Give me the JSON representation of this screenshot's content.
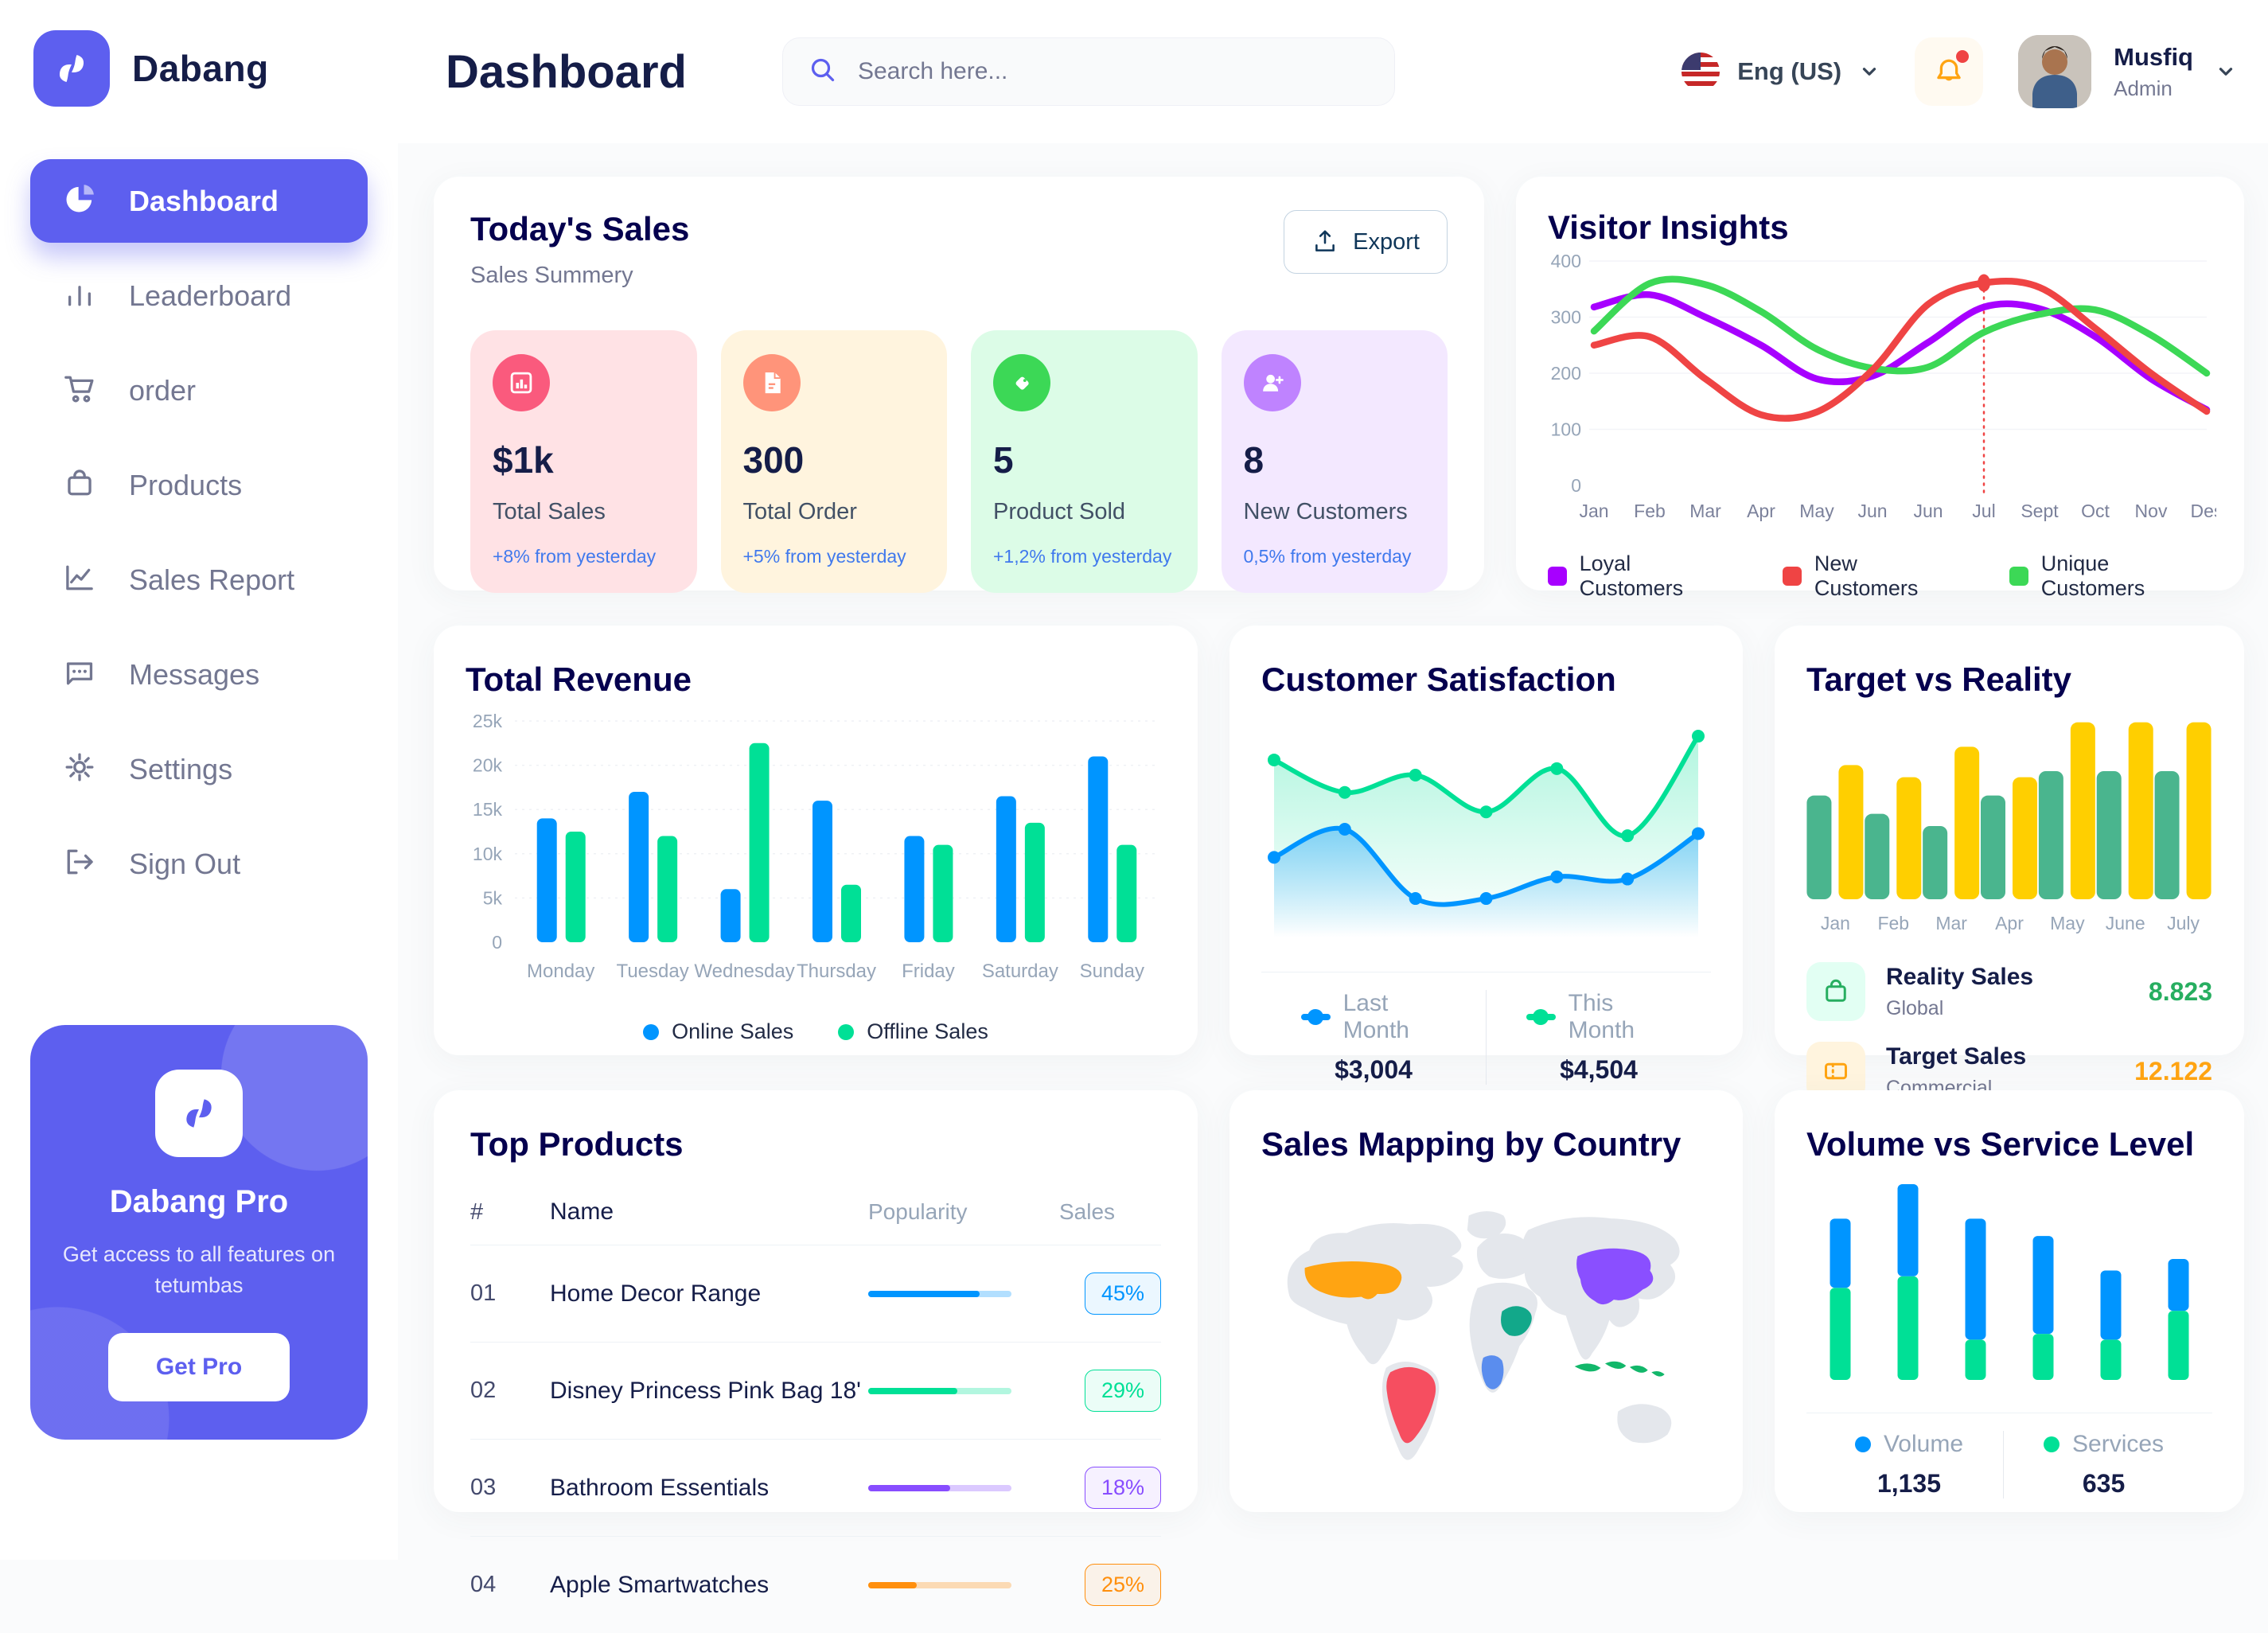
{
  "app": {
    "name": "Dabang"
  },
  "header": {
    "title": "Dashboard",
    "search_placeholder": "Search here...",
    "language": "Eng (US)",
    "user": {
      "name": "Musfiq",
      "role": "Admin"
    }
  },
  "sidebar": {
    "items": [
      {
        "label": "Dashboard",
        "active": true
      },
      {
        "label": "Leaderboard"
      },
      {
        "label": "order"
      },
      {
        "label": "Products"
      },
      {
        "label": "Sales Report"
      },
      {
        "label": "Messages"
      },
      {
        "label": "Settings"
      },
      {
        "label": "Sign Out"
      }
    ],
    "pro": {
      "title": "Dabang Pro",
      "desc": "Get access to all features on tetumbas",
      "cta": "Get Pro"
    }
  },
  "todays_sales": {
    "title": "Today's Sales",
    "subtitle": "Sales Summery",
    "export_label": "Export",
    "cards": [
      {
        "value": "$1k",
        "label": "Total Sales",
        "delta": "+8% from yesterday",
        "bg": "#FFE2E5",
        "icon_bg": "#FA5A7D",
        "icon": "chart-frame-icon"
      },
      {
        "value": "300",
        "label": "Total Order",
        "delta": "+5% from yesterday",
        "bg": "#FFF4DE",
        "icon_bg": "#FF947A",
        "icon": "file-icon"
      },
      {
        "value": "5",
        "label": "Product Sold",
        "delta": "+1,2% from yesterday",
        "bg": "#DCFCE7",
        "icon_bg": "#3CD856",
        "icon": "tag-icon"
      },
      {
        "value": "8",
        "label": "New Customers",
        "delta": "0,5% from yesterday",
        "bg": "#F3E8FF",
        "icon_bg": "#BF83FF",
        "icon": "user-plus-icon"
      }
    ]
  },
  "chart_data": {
    "visitor_insights": {
      "type": "line",
      "title": "Visitor Insights",
      "x": [
        "Jan",
        "Feb",
        "Mar",
        "Apr",
        "May",
        "Jun",
        "Jun",
        "Jul",
        "Sept",
        "Oct",
        "Nov",
        "Des"
      ],
      "ylim": [
        0,
        400
      ],
      "yticks": [
        0,
        100,
        200,
        300,
        400
      ],
      "series": [
        {
          "name": "Loyal Customers",
          "color": "#A700FF",
          "values": [
            318,
            340,
            300,
            250,
            190,
            195,
            255,
            318,
            315,
            265,
            190,
            135
          ]
        },
        {
          "name": "Unique Customers",
          "color": "#3CD856",
          "values": [
            275,
            360,
            358,
            310,
            243,
            209,
            211,
            273,
            305,
            313,
            268,
            200
          ]
        },
        {
          "name": "New Customers",
          "color": "#EF4444",
          "values": [
            250,
            265,
            190,
            126,
            131,
            206,
            323,
            361,
            353,
            280,
            200,
            132
          ]
        }
      ],
      "highlight": {
        "series": "New Customers",
        "index": 7,
        "value": 361
      },
      "legend": [
        "Loyal Customers",
        "New Customers",
        "Unique Customers"
      ],
      "legend_colors": [
        "#A700FF",
        "#EF4444",
        "#3CD856"
      ]
    },
    "total_revenue": {
      "type": "bar",
      "title": "Total Revenue",
      "categories": [
        "Monday",
        "Tuesday",
        "Wednesday",
        "Thursday",
        "Friday",
        "Saturday",
        "Sunday"
      ],
      "ylim": [
        0,
        25000
      ],
      "ytick_labels": [
        "0",
        "5k",
        "10k",
        "15k",
        "20k",
        "25k"
      ],
      "series": [
        {
          "name": "Online Sales",
          "color": "#0095FF",
          "values": [
            14000,
            17000,
            6000,
            16000,
            12000,
            16500,
            21000
          ]
        },
        {
          "name": "Offline Sales",
          "color": "#00E096",
          "values": [
            12500,
            12000,
            22500,
            6500,
            11000,
            13500,
            11000
          ]
        }
      ]
    },
    "customer_satisfaction": {
      "type": "area",
      "title": "Customer Satisfaction",
      "ylim": [
        0,
        100
      ],
      "series": [
        {
          "name": "Last Month",
          "color": "#0095FF",
          "total": "$3,004",
          "values": [
            37,
            50,
            18,
            18,
            28,
            27,
            48
          ]
        },
        {
          "name": "This Month",
          "color": "#00E096",
          "total": "$4,504",
          "values": [
            82,
            67,
            75,
            58,
            78,
            47,
            93
          ]
        }
      ]
    },
    "target_vs_reality": {
      "type": "bar",
      "title": "Target vs Reality",
      "categories": [
        "Jan",
        "Feb",
        "Mar",
        "Apr",
        "May",
        "June",
        "July"
      ],
      "ylim": [
        0,
        15
      ],
      "series": [
        {
          "name": "Reality Sales",
          "color": "#4AB58E",
          "values": [
            8.5,
            7,
            6,
            8.5,
            10.5,
            10.5,
            10.5
          ]
        },
        {
          "name": "Target Sales",
          "color": "#FFCF00",
          "values": [
            11,
            10,
            12.5,
            10,
            14.5,
            14.5,
            14.5
          ]
        }
      ],
      "legend": [
        {
          "title": "Reality Sales",
          "sub": "Global",
          "value": "8.823",
          "value_color": "#27AE60",
          "tile_bg": "#E2FFF3",
          "icon_color": "#27AE60"
        },
        {
          "title": "Target Sales",
          "sub": "Commercial",
          "value": "12.122",
          "value_color": "#FFA412",
          "tile_bg": "#FFF4DE",
          "icon_color": "#FFA412"
        }
      ]
    },
    "volume_vs_service": {
      "type": "stacked-bar",
      "title": "Volume vs Service Level",
      "ylim": [
        0,
        17
      ],
      "series": [
        {
          "name": "Volume",
          "color": "#0095FF",
          "total": "1,135",
          "values": [
            6,
            8,
            10.5,
            8.5,
            6,
            4.5
          ]
        },
        {
          "name": "Services",
          "color": "#00E096",
          "total": "635",
          "values": [
            8,
            9,
            3.5,
            4,
            3.5,
            6
          ]
        }
      ]
    }
  },
  "top_products": {
    "title": "Top Products",
    "headers": [
      "#",
      "Name",
      "Popularity",
      "Sales"
    ],
    "rows": [
      {
        "num": "01",
        "name": "Home Decor Range",
        "popularity": 78,
        "sales": "45%",
        "color": "#0095FF"
      },
      {
        "num": "02",
        "name": "Disney Princess Pink Bag 18'",
        "popularity": 62,
        "sales": "29%",
        "color": "#00E096"
      },
      {
        "num": "03",
        "name": "Bathroom Essentials",
        "popularity": 57,
        "sales": "18%",
        "color": "#884DFF"
      },
      {
        "num": "04",
        "name": "Apple Smartwatches",
        "popularity": 34,
        "sales": "25%",
        "color": "#FF8F0D"
      }
    ]
  },
  "sales_map": {
    "title": "Sales Mapping by Country",
    "countries": [
      {
        "name": "usa",
        "color": "#FFA412"
      },
      {
        "name": "brazil",
        "color": "#F64E60"
      },
      {
        "name": "saudi",
        "color": "#12A88A"
      },
      {
        "name": "congo",
        "color": "#5A8DEE"
      },
      {
        "name": "china",
        "color": "#8A4FFF"
      },
      {
        "name": "indonesia",
        "color": "#12B76A"
      }
    ],
    "land_color": "#E4E7EC"
  }
}
